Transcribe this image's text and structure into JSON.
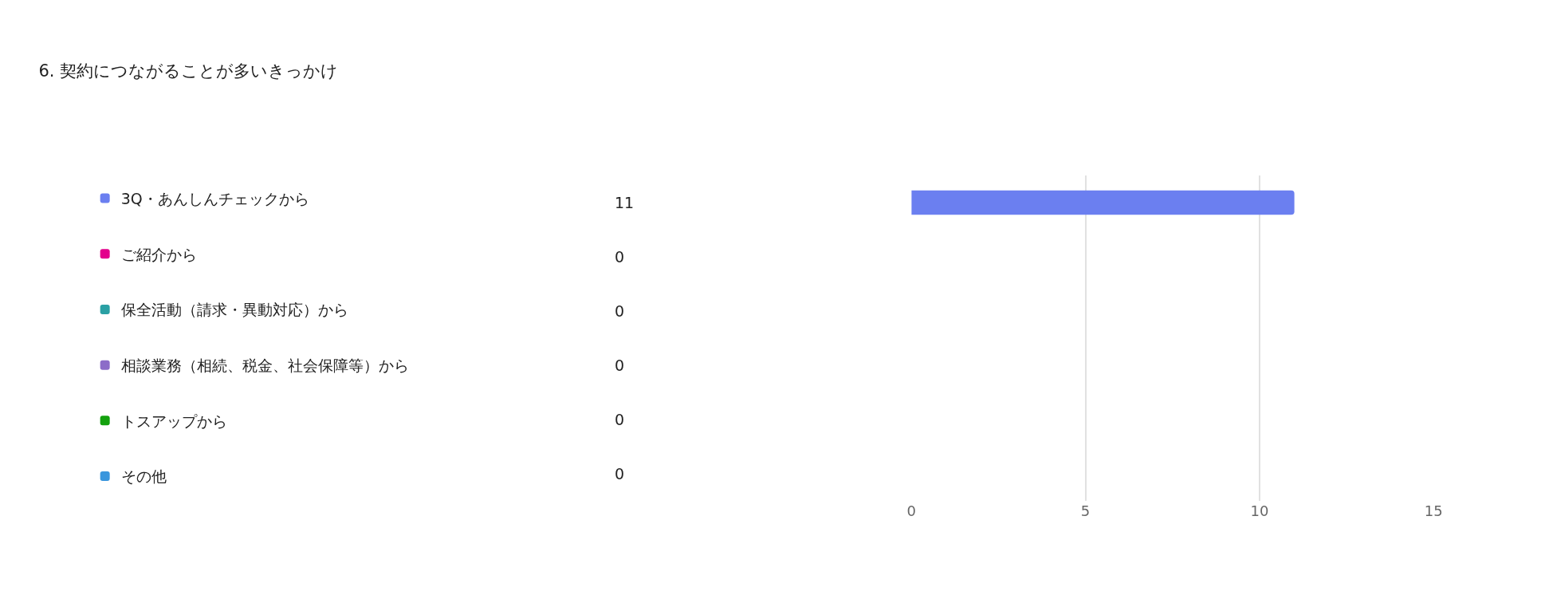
{
  "chart_data": {
    "type": "bar",
    "orientation": "horizontal",
    "title": "6. 契約につながることが多いきっかけ",
    "categories": [
      null,
      null,
      null,
      null,
      null,
      null
    ],
    "series": [
      {
        "name": "3Q・あんしんチェックから",
        "color": "#6b7ff0",
        "values": [
          11,
          null,
          null,
          null,
          null,
          null
        ]
      },
      {
        "name": "ご紹介から",
        "color": "#e3008c",
        "values": [
          null,
          0,
          null,
          null,
          null,
          null
        ]
      },
      {
        "name": "保全活動（請求・異動対応）から",
        "color": "#2aa0a4",
        "values": [
          null,
          null,
          0,
          null,
          null,
          null
        ]
      },
      {
        "name": "相談業務（相続、税金、社会保障等）から",
        "color": "#8c6cc8",
        "values": [
          null,
          null,
          null,
          0,
          null,
          null
        ]
      },
      {
        "name": "トスアップから",
        "color": "#13a10e",
        "values": [
          null,
          null,
          null,
          null,
          0,
          null
        ]
      },
      {
        "name": "その他",
        "color": "#3a96dd",
        "values": [
          null,
          null,
          null,
          null,
          null,
          0
        ]
      }
    ],
    "annotations": [
      "11",
      "0",
      "0",
      "0",
      "0",
      "0"
    ],
    "xlim": [
      0,
      15
    ],
    "xticks": [
      0,
      5,
      10,
      15
    ],
    "grid": "x",
    "legend": "left"
  }
}
